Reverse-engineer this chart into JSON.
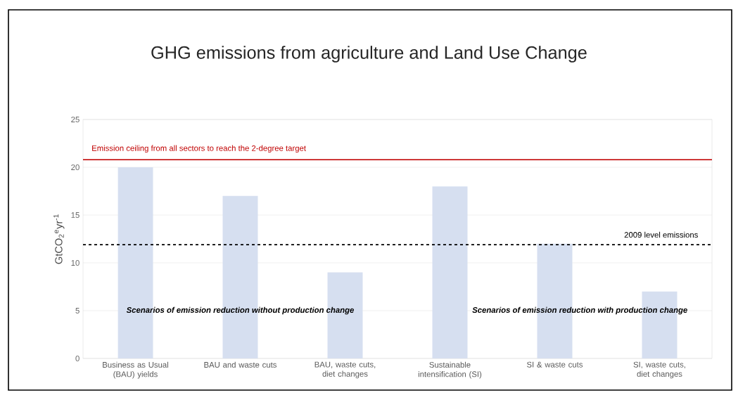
{
  "chart_data": {
    "type": "bar",
    "title": "GHG emissions from agriculture and Land Use Change",
    "ylabel": "GtCO$_{2}$$^{e}$yr$^{-1}$",
    "categories": [
      "Business as Usual (BAU) yields",
      "BAU and waste cuts",
      "BAU, waste cuts, diet changes",
      "Sustainable intensification (SI)",
      "SI & waste cuts",
      "SI, waste cuts, diet changes"
    ],
    "values": [
      20,
      17,
      9,
      18,
      12,
      7
    ],
    "color": "#d6dff0",
    "ylim": [
      0,
      25
    ],
    "yticks": [
      0,
      5,
      10,
      15,
      20,
      25
    ],
    "grid": "y",
    "ref_lines": [
      {
        "axis": "y",
        "value": 20.8,
        "label": "Emission ceiling from all sectors to reach the 2-degree target",
        "color": "#c00000",
        "line_style": "solid"
      },
      {
        "axis": "y",
        "value": 11.9,
        "label": "2009 level emissions",
        "color": "#000000",
        "line_style": "dashed"
      }
    ],
    "annotations": [
      "Scenarios of emission reduction without  production change",
      "Scenarios of emission reduction with production change"
    ]
  }
}
